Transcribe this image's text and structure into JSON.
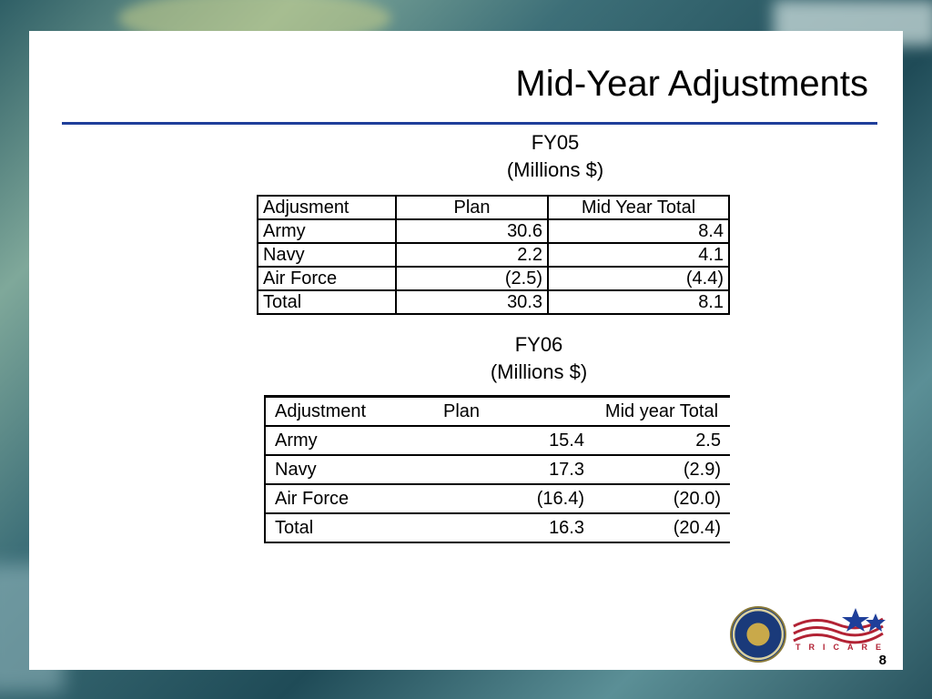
{
  "title": "Mid-Year Adjustments",
  "fy05": {
    "caption_line1": "FY05",
    "caption_line2": "(Millions $)",
    "headers": [
      "Adjusment",
      "Plan",
      "Mid Year Total"
    ],
    "rows": [
      [
        "Army",
        "30.6",
        "8.4"
      ],
      [
        "Navy",
        "2.2",
        "4.1"
      ],
      [
        "Air Force",
        "(2.5)",
        "(4.4)"
      ],
      [
        "Total",
        "30.3",
        "8.1"
      ]
    ]
  },
  "fy06": {
    "caption_line1": "FY06",
    "caption_line2": "(Millions $)",
    "headers": [
      "Adjustment",
      "Plan",
      "Mid year Total"
    ],
    "rows": [
      [
        "Army",
        "15.4",
        "2.5"
      ],
      [
        "Navy",
        "17.3",
        "(2.9)"
      ],
      [
        "Air Force",
        "(16.4)",
        "(20.0)"
      ],
      [
        "Total",
        "16.3",
        "(20.4)"
      ]
    ]
  },
  "logo_text": "TRICARE",
  "page_number": "8",
  "colors": {
    "rule": "#1f3f9a",
    "tricare_red": "#b22234"
  }
}
